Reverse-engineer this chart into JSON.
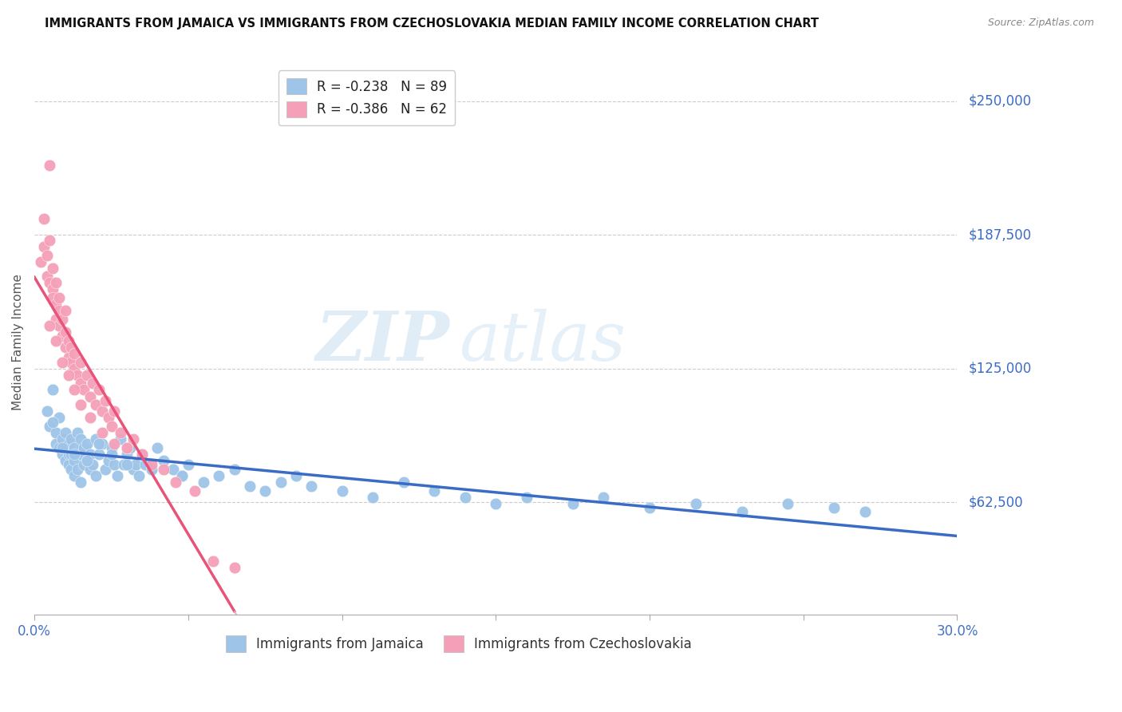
{
  "title": "IMMIGRANTS FROM JAMAICA VS IMMIGRANTS FROM CZECHOSLOVAKIA MEDIAN FAMILY INCOME CORRELATION CHART",
  "source": "Source: ZipAtlas.com",
  "ylabel": "Median Family Income",
  "ytick_labels": [
    "$62,500",
    "$125,000",
    "$187,500",
    "$250,000"
  ],
  "ytick_values": [
    62500,
    125000,
    187500,
    250000
  ],
  "ylim": [
    10000,
    265000
  ],
  "xlim": [
    0.0,
    0.3
  ],
  "legend_entry1": "R = -0.238   N = 89",
  "legend_entry2": "R = -0.386   N = 62",
  "legend_label1": "Immigrants from Jamaica",
  "legend_label2": "Immigrants from Czechoslovakia",
  "color_jamaica": "#9ec4e8",
  "color_czech": "#f5a0b8",
  "color_jamaica_line": "#3B6CC5",
  "color_czech_line": "#E8537A",
  "color_czech_ext": "#e0b8c8",
  "watermark_zip": "ZIP",
  "watermark_atlas": "atlas",
  "r_jamaica": -0.238,
  "n_jamaica": 89,
  "r_czech": -0.386,
  "n_czech": 62,
  "jamaica_x": [
    0.004,
    0.005,
    0.006,
    0.007,
    0.007,
    0.008,
    0.008,
    0.009,
    0.009,
    0.01,
    0.01,
    0.01,
    0.011,
    0.011,
    0.011,
    0.012,
    0.012,
    0.012,
    0.013,
    0.013,
    0.013,
    0.014,
    0.014,
    0.015,
    0.015,
    0.015,
    0.016,
    0.016,
    0.017,
    0.017,
    0.018,
    0.018,
    0.019,
    0.02,
    0.02,
    0.021,
    0.022,
    0.023,
    0.024,
    0.025,
    0.026,
    0.027,
    0.028,
    0.029,
    0.03,
    0.031,
    0.032,
    0.033,
    0.034,
    0.035,
    0.036,
    0.038,
    0.04,
    0.042,
    0.045,
    0.048,
    0.05,
    0.055,
    0.06,
    0.065,
    0.07,
    0.075,
    0.08,
    0.085,
    0.09,
    0.1,
    0.11,
    0.12,
    0.13,
    0.14,
    0.15,
    0.16,
    0.175,
    0.185,
    0.2,
    0.215,
    0.23,
    0.245,
    0.26,
    0.27,
    0.006,
    0.009,
    0.013,
    0.017,
    0.021,
    0.025,
    0.03,
    0.038,
    0.048
  ],
  "jamaica_y": [
    105000,
    98000,
    115000,
    90000,
    95000,
    88000,
    102000,
    85000,
    92000,
    82000,
    88000,
    95000,
    80000,
    90000,
    85000,
    78000,
    85000,
    92000,
    75000,
    82000,
    88000,
    95000,
    78000,
    85000,
    92000,
    72000,
    88000,
    80000,
    82000,
    90000,
    78000,
    85000,
    80000,
    92000,
    75000,
    85000,
    90000,
    78000,
    82000,
    88000,
    80000,
    75000,
    92000,
    80000,
    85000,
    88000,
    78000,
    80000,
    75000,
    85000,
    80000,
    78000,
    88000,
    82000,
    78000,
    75000,
    80000,
    72000,
    75000,
    78000,
    70000,
    68000,
    72000,
    75000,
    70000,
    68000,
    65000,
    72000,
    68000,
    65000,
    62000,
    65000,
    62000,
    65000,
    60000,
    62000,
    58000,
    62000,
    60000,
    58000,
    100000,
    88000,
    85000,
    82000,
    90000,
    85000,
    80000,
    78000,
    75000
  ],
  "czech_x": [
    0.002,
    0.003,
    0.003,
    0.004,
    0.004,
    0.005,
    0.005,
    0.005,
    0.006,
    0.006,
    0.006,
    0.007,
    0.007,
    0.007,
    0.008,
    0.008,
    0.008,
    0.009,
    0.009,
    0.01,
    0.01,
    0.01,
    0.011,
    0.011,
    0.012,
    0.012,
    0.013,
    0.013,
    0.014,
    0.015,
    0.015,
    0.016,
    0.017,
    0.018,
    0.019,
    0.02,
    0.021,
    0.022,
    0.023,
    0.024,
    0.025,
    0.026,
    0.028,
    0.03,
    0.032,
    0.035,
    0.038,
    0.042,
    0.046,
    0.052,
    0.058,
    0.065,
    0.005,
    0.007,
    0.009,
    0.011,
    0.013,
    0.015,
    0.018,
    0.022,
    0.026,
    0.03
  ],
  "czech_y": [
    175000,
    182000,
    195000,
    168000,
    178000,
    165000,
    185000,
    220000,
    162000,
    172000,
    158000,
    155000,
    165000,
    148000,
    152000,
    145000,
    158000,
    140000,
    148000,
    135000,
    142000,
    152000,
    130000,
    138000,
    128000,
    135000,
    125000,
    132000,
    122000,
    118000,
    128000,
    115000,
    122000,
    112000,
    118000,
    108000,
    115000,
    105000,
    110000,
    102000,
    98000,
    105000,
    95000,
    88000,
    92000,
    85000,
    80000,
    78000,
    72000,
    68000,
    35000,
    32000,
    145000,
    138000,
    128000,
    122000,
    115000,
    108000,
    102000,
    95000,
    90000,
    88000
  ]
}
